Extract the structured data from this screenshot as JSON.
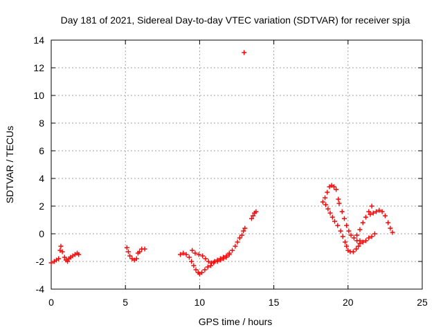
{
  "chart_data": {
    "type": "scatter",
    "title": "Day 181 of 2021, Sidereal Day-to-day VTEC variation (SDTVAR) for receiver spja",
    "xlabel": "GPS time / hours",
    "ylabel": "SDTVAR / TECUs",
    "xlim": [
      0,
      25
    ],
    "ylim": [
      -4,
      14
    ],
    "xticks": [
      "0",
      "5",
      "10",
      "15",
      "20",
      "25"
    ],
    "yticks": [
      "-4",
      "-2",
      "0",
      "2",
      "4",
      "6",
      "8",
      "10",
      "12",
      "14"
    ],
    "grid": true,
    "marker": "plus",
    "color": "#ff0000",
    "series": [
      {
        "points": [
          [
            0.0,
            -2.1
          ],
          [
            0.2,
            -2.0
          ],
          [
            0.35,
            -1.9
          ],
          [
            0.5,
            -1.8
          ],
          [
            0.6,
            -1.2
          ],
          [
            0.65,
            -0.9
          ],
          [
            0.75,
            -1.3
          ],
          [
            0.9,
            -1.7
          ],
          [
            1.0,
            -1.9
          ],
          [
            1.1,
            -2.0
          ],
          [
            1.2,
            -1.8
          ],
          [
            1.3,
            -1.7
          ],
          [
            1.45,
            -1.6
          ],
          [
            1.6,
            -1.5
          ],
          [
            1.75,
            -1.4
          ],
          [
            1.85,
            -1.5
          ],
          [
            5.1,
            -1.0
          ],
          [
            5.2,
            -1.3
          ],
          [
            5.3,
            -1.6
          ],
          [
            5.45,
            -1.8
          ],
          [
            5.6,
            -1.9
          ],
          [
            5.75,
            -1.8
          ],
          [
            5.85,
            -1.4
          ],
          [
            5.95,
            -1.3
          ],
          [
            6.1,
            -1.1
          ],
          [
            6.3,
            -1.1
          ],
          [
            8.7,
            -1.5
          ],
          [
            8.9,
            -1.4
          ],
          [
            9.1,
            -1.5
          ],
          [
            9.3,
            -1.7
          ],
          [
            9.45,
            -2.0
          ],
          [
            9.6,
            -2.3
          ],
          [
            9.75,
            -2.6
          ],
          [
            9.9,
            -2.8
          ],
          [
            10.0,
            -2.9
          ],
          [
            10.15,
            -2.8
          ],
          [
            10.35,
            -2.6
          ],
          [
            10.55,
            -2.4
          ],
          [
            10.75,
            -2.3
          ],
          [
            10.95,
            -2.1
          ],
          [
            9.5,
            -1.2
          ],
          [
            9.7,
            -1.4
          ],
          [
            9.95,
            -1.5
          ],
          [
            10.2,
            -1.6
          ],
          [
            10.4,
            -1.8
          ],
          [
            10.6,
            -2.0
          ],
          [
            10.8,
            -2.1
          ],
          [
            11.0,
            -2.0
          ],
          [
            11.2,
            -1.9
          ],
          [
            11.4,
            -1.8
          ],
          [
            11.6,
            -1.8
          ],
          [
            11.8,
            -1.7
          ],
          [
            12.0,
            -1.5
          ],
          [
            11.2,
            -2.0
          ],
          [
            11.4,
            -1.9
          ],
          [
            11.6,
            -1.7
          ],
          [
            11.8,
            -1.6
          ],
          [
            12.0,
            -1.4
          ],
          [
            12.2,
            -1.2
          ],
          [
            12.4,
            -0.9
          ],
          [
            12.55,
            -0.6
          ],
          [
            12.7,
            -0.3
          ],
          [
            12.85,
            -0.1
          ],
          [
            12.95,
            0.2
          ],
          [
            13.05,
            0.4
          ],
          [
            13.0,
            13.1
          ],
          [
            13.5,
            1.1
          ],
          [
            13.6,
            1.3
          ],
          [
            13.7,
            1.5
          ],
          [
            13.8,
            1.6
          ],
          [
            18.3,
            2.3
          ],
          [
            18.45,
            2.6
          ],
          [
            18.6,
            3.0
          ],
          [
            18.75,
            3.4
          ],
          [
            18.9,
            3.5
          ],
          [
            19.05,
            3.4
          ],
          [
            19.2,
            3.2
          ],
          [
            19.35,
            2.5
          ],
          [
            19.4,
            2.2
          ],
          [
            18.5,
            2.1
          ],
          [
            18.65,
            1.8
          ],
          [
            18.8,
            1.5
          ],
          [
            18.95,
            1.2
          ],
          [
            19.1,
            0.9
          ],
          [
            19.3,
            0.6
          ],
          [
            19.5,
            0.2
          ],
          [
            19.65,
            -0.2
          ],
          [
            19.8,
            -0.6
          ],
          [
            19.9,
            -0.9
          ],
          [
            20.0,
            -1.2
          ],
          [
            20.15,
            -1.3
          ],
          [
            20.35,
            -1.3
          ],
          [
            20.55,
            -1.1
          ],
          [
            20.7,
            -0.9
          ],
          [
            19.6,
            1.6
          ],
          [
            19.75,
            1.1
          ],
          [
            19.9,
            0.6
          ],
          [
            20.05,
            0.2
          ],
          [
            20.2,
            -0.1
          ],
          [
            20.4,
            -0.3
          ],
          [
            20.6,
            -0.5
          ],
          [
            20.8,
            -0.7
          ],
          [
            20.8,
            -0.5
          ],
          [
            21.0,
            -0.6
          ],
          [
            21.2,
            -0.5
          ],
          [
            21.4,
            -0.3
          ],
          [
            21.6,
            -0.2
          ],
          [
            21.8,
            0.0
          ],
          [
            20.6,
            -0.1
          ],
          [
            20.8,
            0.3
          ],
          [
            21.0,
            0.8
          ],
          [
            21.2,
            1.2
          ],
          [
            21.4,
            1.6
          ],
          [
            21.6,
            2.0
          ],
          [
            21.5,
            1.4
          ],
          [
            21.7,
            1.5
          ],
          [
            21.9,
            1.6
          ],
          [
            22.1,
            1.7
          ],
          [
            22.3,
            1.6
          ],
          [
            22.5,
            1.3
          ],
          [
            22.7,
            0.8
          ],
          [
            22.85,
            0.4
          ],
          [
            23.0,
            0.1
          ]
        ]
      }
    ]
  }
}
